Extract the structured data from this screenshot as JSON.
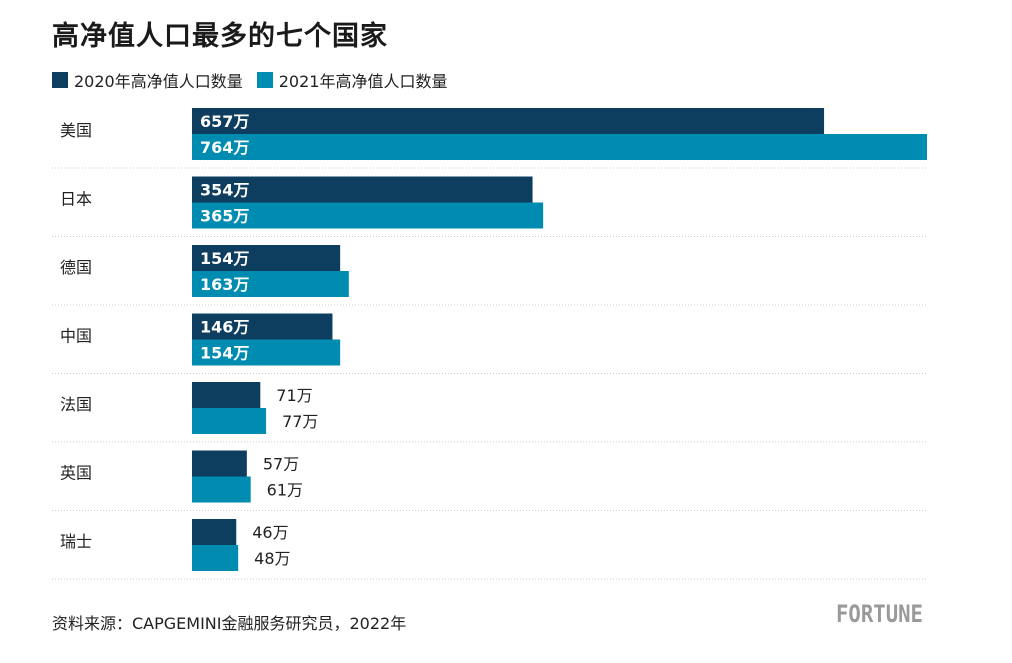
{
  "title": "高净值人口最多的七个国家",
  "legend": {
    "series_2020": "2020年高净值人口数量",
    "series_2021": "2021年高净值人口数量"
  },
  "colors": {
    "series_2020": "#0d3d5f",
    "series_2021": "#008bb0",
    "label_inside": "#ffffff",
    "label_outside": "#222222",
    "separator": "#cccccc"
  },
  "chart_data": {
    "type": "bar",
    "orientation": "horizontal",
    "categories": [
      "美国",
      "日本",
      "德国",
      "中国",
      "法国",
      "英国",
      "瑞士"
    ],
    "series": [
      {
        "name": "2020年高净值人口数量",
        "values": [
          657,
          354,
          154,
          146,
          71,
          57,
          46
        ],
        "labels": [
          "657万",
          "354万",
          "154万",
          "146万",
          "71万",
          "57万",
          "46万"
        ]
      },
      {
        "name": "2021年高净值人口数量",
        "values": [
          764,
          365,
          163,
          154,
          77,
          61,
          48
        ],
        "labels": [
          "764万",
          "365万",
          "163万",
          "154万",
          "77万",
          "61万",
          "48万"
        ]
      }
    ],
    "unit": "万",
    "xlim": [
      0,
      764
    ],
    "grid": false,
    "legend_position": "top-left"
  },
  "source": "资料来源：CAPGEMINI金融服务研究员，2022年",
  "brand": "FORTUNE"
}
